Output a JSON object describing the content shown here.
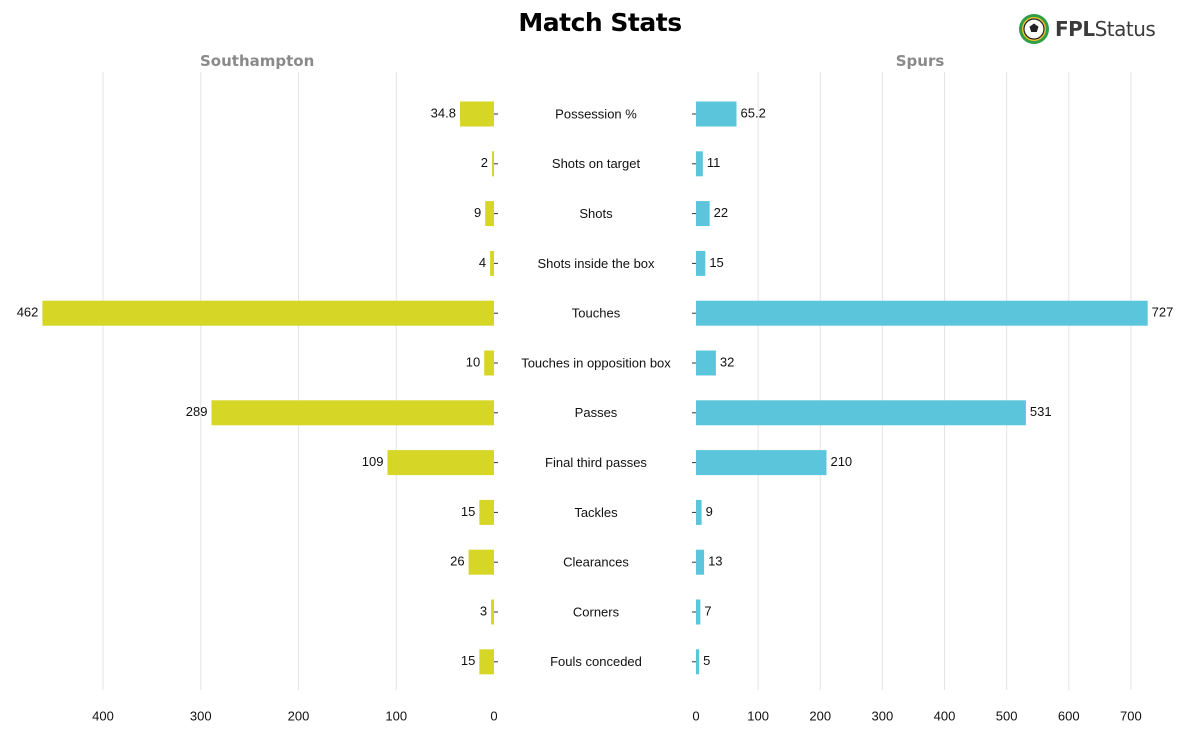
{
  "title": "Match Stats",
  "brand": {
    "prefix": "FPL",
    "suffix": "Status"
  },
  "colors": {
    "home": "#d6d626",
    "away": "#5bc5dc",
    "grid": "#e4e4e4"
  },
  "chart_data": {
    "type": "bar",
    "orientation": "horizontal-mirrored",
    "title": "Match Stats",
    "categories": [
      "Possession %",
      "Shots on target",
      "Shots",
      "Shots inside the box",
      "Touches",
      "Touches in opposition box",
      "Passes",
      "Final third passes",
      "Tackles",
      "Clearances",
      "Corners",
      "Fouls conceded"
    ],
    "series": [
      {
        "name": "Southampton",
        "side": "left",
        "values": [
          34.8,
          2,
          9,
          4,
          462,
          10,
          289,
          109,
          15,
          26,
          3,
          15
        ],
        "labels": [
          "34.8",
          "2",
          "9",
          "4",
          "462",
          "10",
          "289",
          "109",
          "15",
          "26",
          "3",
          "15"
        ]
      },
      {
        "name": "Spurs",
        "side": "right",
        "values": [
          65.2,
          11,
          22,
          15,
          727,
          32,
          531,
          210,
          9,
          13,
          7,
          5
        ],
        "labels": [
          "65.2",
          "11",
          "22",
          "15",
          "727",
          "32",
          "531",
          "210",
          "9",
          "13",
          "7",
          "5"
        ]
      }
    ],
    "left_axis": {
      "ticks": [
        400,
        300,
        200,
        100,
        0
      ],
      "tick_labels": [
        "400",
        "300",
        "200",
        "100",
        "0"
      ]
    },
    "right_axis": {
      "ticks": [
        0,
        100,
        200,
        300,
        400,
        500,
        600,
        700
      ],
      "tick_labels": [
        "0",
        "100",
        "200",
        "300",
        "400",
        "500",
        "600",
        "700"
      ]
    },
    "grid": true
  }
}
